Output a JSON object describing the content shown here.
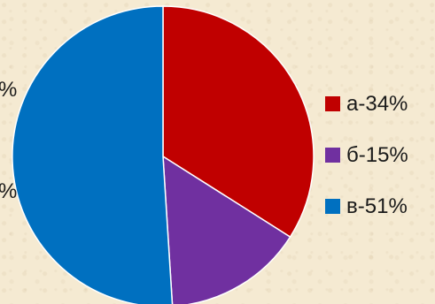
{
  "chart_data": {
    "type": "pie",
    "title": "",
    "slices": [
      {
        "label": "а-34%",
        "value": 34,
        "color": "#c00000"
      },
      {
        "label": "б-15%",
        "value": 15,
        "color": "#7030a0"
      },
      {
        "label": "в-51%",
        "value": 51,
        "color": "#0070c0"
      }
    ],
    "start_angle_deg": 0,
    "direction": "clockwise",
    "slice_border_color": "#ffffff",
    "legend_position": "right",
    "clipped_left_labels": [
      "%",
      "%"
    ]
  }
}
